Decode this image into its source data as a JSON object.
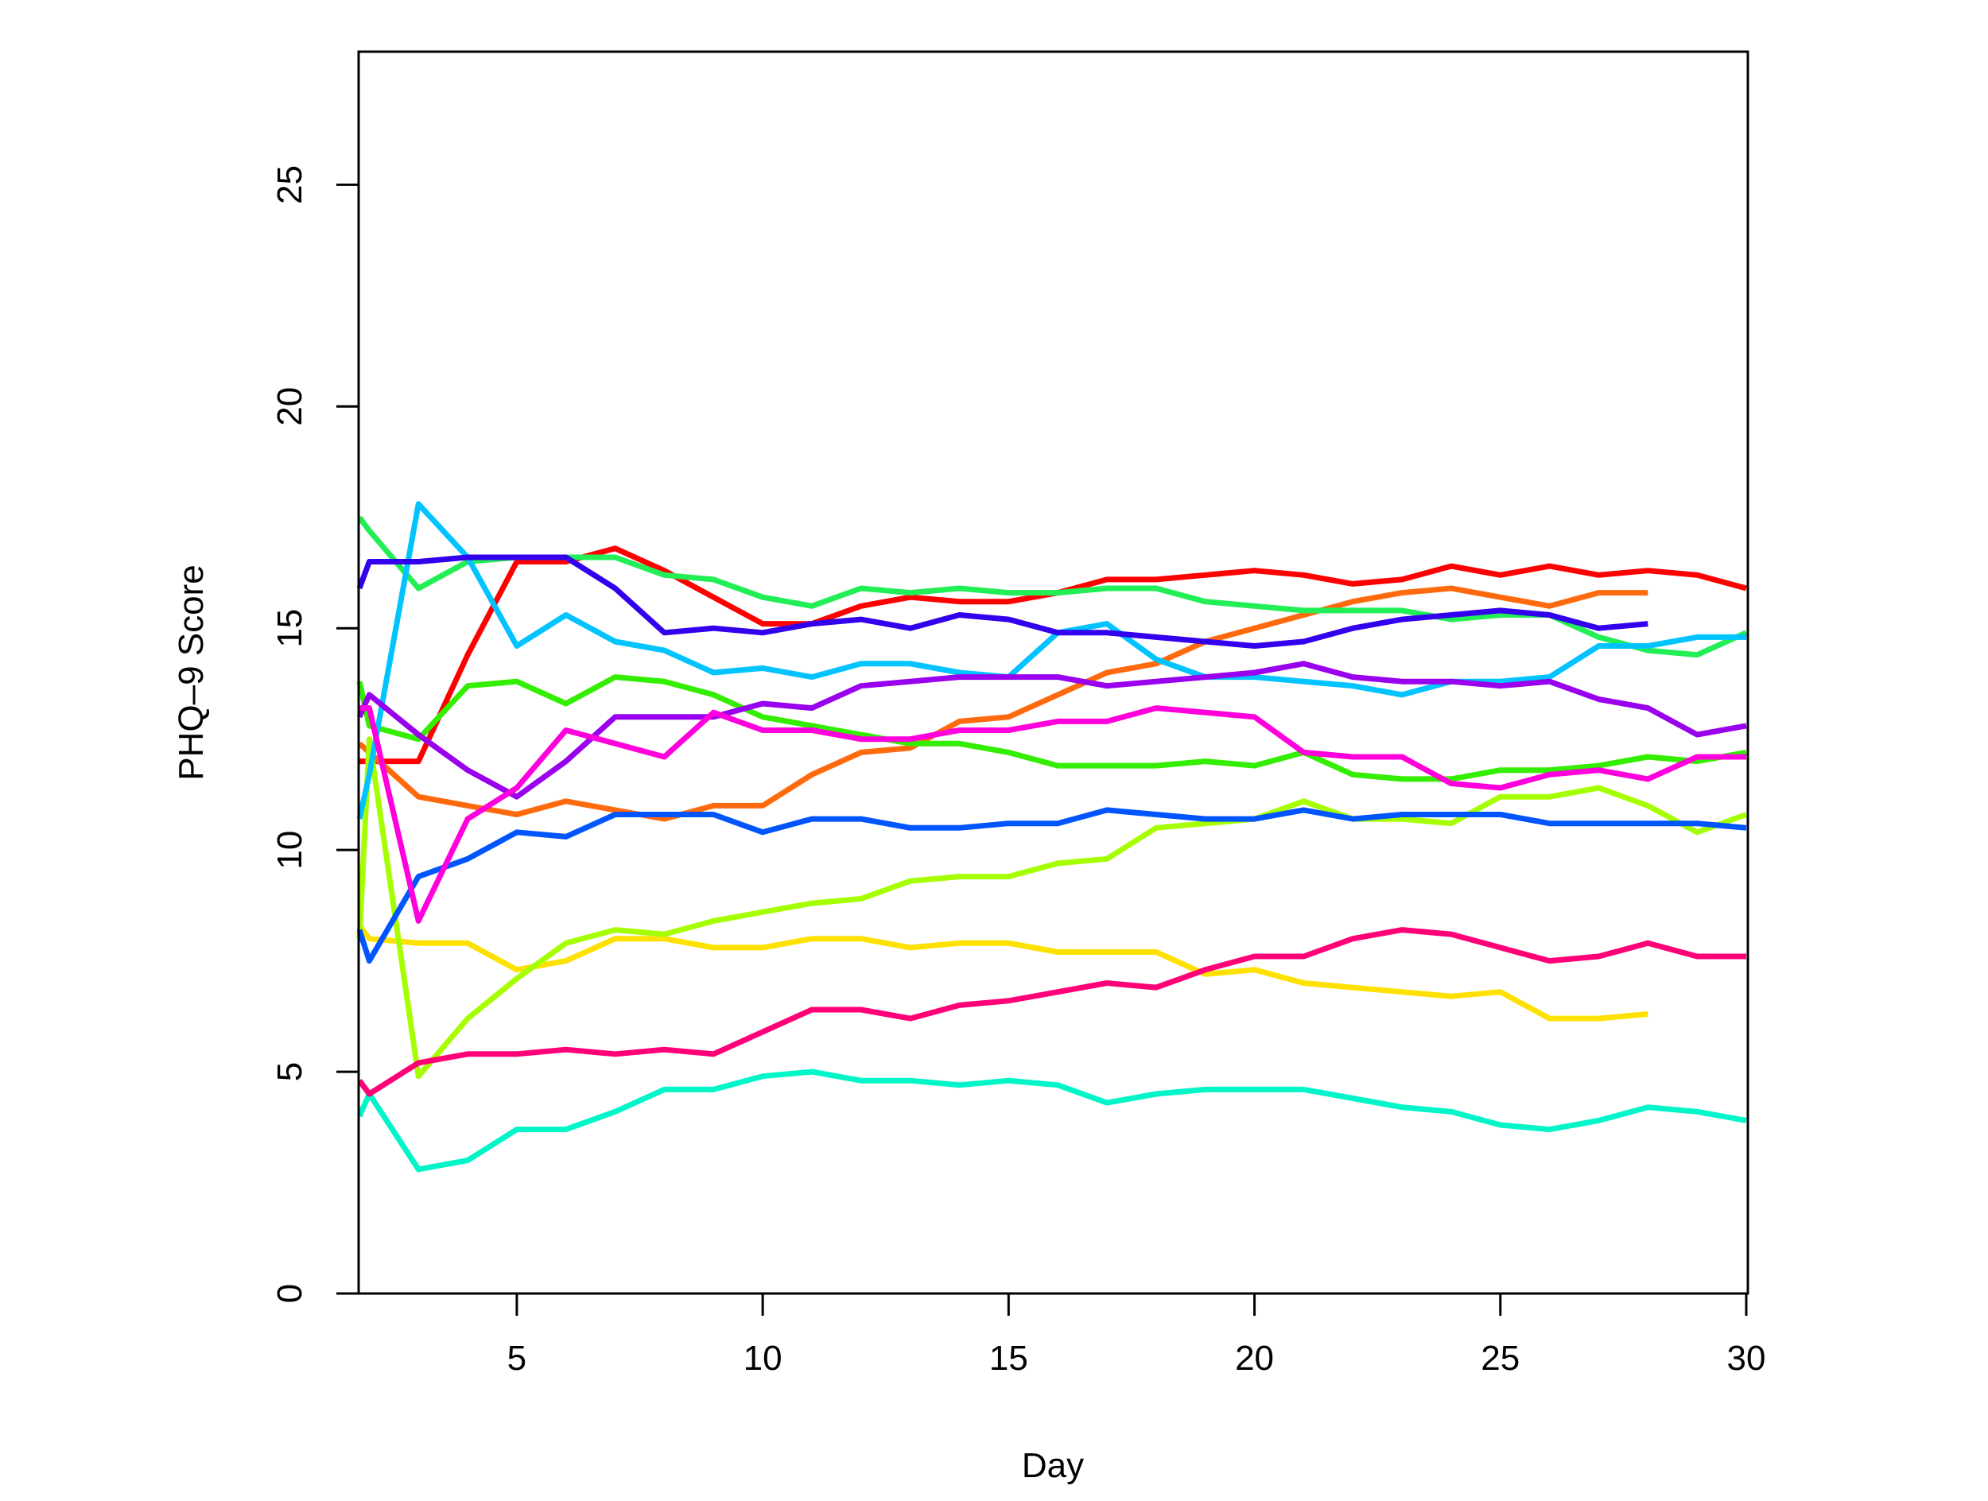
{
  "chart_data": {
    "type": "line",
    "title": "",
    "xlabel": "Day",
    "ylabel": "PHQ–9 Score",
    "xlim": [
      1.8,
      30
    ],
    "ylim": [
      0,
      28
    ],
    "xticks": [
      5,
      10,
      15,
      20,
      25,
      30
    ],
    "yticks": [
      0,
      5,
      10,
      15,
      20,
      25
    ],
    "grid": false,
    "legend": "none",
    "series": [
      {
        "color": "#FF0000",
        "x": [
          1.8,
          2,
          3,
          4,
          5,
          6,
          7,
          8,
          9,
          10,
          11,
          12,
          13,
          14,
          15,
          16,
          17,
          18,
          19,
          20,
          21,
          22,
          23,
          24,
          25,
          26,
          27,
          28,
          29,
          30
        ],
        "y": [
          12.0,
          12.0,
          12.0,
          14.4,
          16.5,
          16.5,
          16.8,
          16.3,
          15.7,
          15.1,
          15.1,
          15.5,
          15.7,
          15.6,
          15.6,
          15.8,
          16.1,
          16.1,
          16.2,
          16.3,
          16.2,
          16.0,
          16.1,
          16.4,
          16.2,
          16.4,
          16.2,
          16.3,
          16.2,
          15.9
        ]
      },
      {
        "color": "#FF6A0E",
        "x": [
          1.8,
          2,
          3,
          4,
          5,
          6,
          7,
          8,
          9,
          10,
          11,
          12,
          13,
          14,
          15,
          16,
          17,
          18,
          19,
          20,
          21,
          22,
          23,
          24,
          25,
          26,
          27,
          28
        ],
        "y": [
          12.4,
          12.2,
          11.2,
          11.0,
          10.8,
          11.1,
          10.9,
          10.7,
          11.0,
          11.0,
          11.7,
          12.2,
          12.3,
          12.9,
          13.0,
          13.5,
          14.0,
          14.2,
          14.7,
          15.0,
          15.3,
          15.6,
          15.8,
          15.9,
          15.7,
          15.5,
          15.8,
          15.8
        ]
      },
      {
        "color": "#FFE100",
        "x": [
          1.8,
          2,
          3,
          4,
          5,
          6,
          7,
          8,
          9,
          10,
          11,
          12,
          13,
          14,
          15,
          16,
          17,
          18,
          19,
          20,
          21,
          22,
          23,
          24,
          25,
          26,
          27,
          28
        ],
        "y": [
          8.3,
          8.0,
          7.9,
          7.9,
          7.3,
          7.5,
          8.0,
          8.0,
          7.8,
          7.8,
          8.0,
          8.0,
          7.8,
          7.9,
          7.9,
          7.7,
          7.7,
          7.7,
          7.2,
          7.3,
          7.0,
          6.9,
          6.8,
          6.7,
          6.8,
          6.2,
          6.2,
          6.3
        ]
      },
      {
        "color": "#A6FF00",
        "x": [
          1.8,
          2,
          3,
          4,
          5,
          6,
          7,
          8,
          9,
          10,
          11,
          12,
          13,
          14,
          15,
          16,
          17,
          18,
          19,
          20,
          21,
          22,
          23,
          24,
          25,
          26,
          27,
          28,
          29,
          30
        ],
        "y": [
          8.0,
          12.5,
          4.9,
          6.2,
          7.1,
          7.9,
          8.2,
          8.1,
          8.4,
          8.6,
          8.8,
          8.9,
          9.3,
          9.4,
          9.4,
          9.7,
          9.8,
          10.5,
          10.6,
          10.7,
          11.1,
          10.7,
          10.7,
          10.6,
          11.2,
          11.2,
          11.4,
          11.0,
          10.4,
          10.8
        ]
      },
      {
        "color": "#33EE00",
        "x": [
          1.8,
          2,
          3,
          4,
          5,
          6,
          7,
          8,
          9,
          10,
          11,
          12,
          13,
          14,
          15,
          16,
          17,
          18,
          19,
          20,
          21,
          22,
          23,
          24,
          25,
          26,
          27,
          28,
          29,
          30
        ],
        "y": [
          13.8,
          12.8,
          12.5,
          13.7,
          13.8,
          13.3,
          13.9,
          13.8,
          13.5,
          13.0,
          12.8,
          12.6,
          12.4,
          12.4,
          12.2,
          11.9,
          11.9,
          11.9,
          12.0,
          11.9,
          12.2,
          11.7,
          11.6,
          11.6,
          11.8,
          11.8,
          11.9,
          12.1,
          12.0,
          12.2
        ]
      },
      {
        "color": "#22EE55",
        "x": [
          1.8,
          2,
          3,
          4,
          5,
          6,
          7,
          8,
          9,
          10,
          11,
          12,
          13,
          14,
          15,
          16,
          17,
          18,
          19,
          20,
          21,
          22,
          23,
          24,
          25,
          26,
          27,
          28,
          29,
          30
        ],
        "y": [
          17.5,
          17.2,
          15.9,
          16.5,
          16.6,
          16.6,
          16.6,
          16.2,
          16.1,
          15.7,
          15.5,
          15.9,
          15.8,
          15.9,
          15.8,
          15.8,
          15.9,
          15.9,
          15.6,
          15.5,
          15.4,
          15.4,
          15.4,
          15.2,
          15.3,
          15.3,
          14.8,
          14.5,
          14.4,
          14.9
        ]
      },
      {
        "color": "#00F5C8",
        "x": [
          1.8,
          2,
          3,
          4,
          5,
          6,
          7,
          8,
          9,
          10,
          11,
          12,
          13,
          14,
          15,
          16,
          17,
          18,
          19,
          20,
          21,
          22,
          23,
          24,
          25,
          26,
          27,
          28,
          29,
          30
        ],
        "y": [
          4.0,
          4.5,
          2.8,
          3.0,
          3.7,
          3.7,
          4.1,
          4.6,
          4.6,
          4.9,
          5.0,
          4.8,
          4.8,
          4.7,
          4.8,
          4.7,
          4.3,
          4.5,
          4.6,
          4.6,
          4.6,
          4.4,
          4.2,
          4.1,
          3.8,
          3.7,
          3.9,
          4.2,
          4.1,
          3.9
        ]
      },
      {
        "color": "#00C3FF",
        "x": [
          1.8,
          2,
          3,
          4,
          5,
          6,
          7,
          8,
          9,
          10,
          11,
          12,
          13,
          14,
          15,
          16,
          17,
          18,
          19,
          20,
          21,
          22,
          23,
          24,
          25,
          26,
          27,
          28,
          29,
          30
        ],
        "y": [
          10.7,
          11.7,
          17.8,
          16.6,
          14.6,
          15.3,
          14.7,
          14.5,
          14.0,
          14.1,
          13.9,
          14.2,
          14.2,
          14.0,
          13.9,
          14.9,
          15.1,
          14.3,
          13.9,
          13.9,
          13.8,
          13.7,
          13.5,
          13.8,
          13.8,
          13.9,
          14.6,
          14.6,
          14.8,
          14.8
        ]
      },
      {
        "color": "#0055FF",
        "x": [
          1.8,
          2,
          3,
          4,
          5,
          6,
          7,
          8,
          9,
          10,
          11,
          12,
          13,
          14,
          15,
          16,
          17,
          18,
          19,
          20,
          21,
          22,
          23,
          24,
          25,
          26,
          27,
          28,
          29,
          30
        ],
        "y": [
          8.2,
          7.5,
          9.4,
          9.8,
          10.4,
          10.3,
          10.8,
          10.8,
          10.8,
          10.4,
          10.7,
          10.7,
          10.5,
          10.5,
          10.6,
          10.6,
          10.9,
          10.8,
          10.7,
          10.7,
          10.9,
          10.7,
          10.8,
          10.8,
          10.8,
          10.6,
          10.6,
          10.6,
          10.6,
          10.5
        ]
      },
      {
        "color": "#3300EE",
        "x": [
          1.8,
          2,
          3,
          4,
          5,
          6,
          7,
          8,
          9,
          10,
          11,
          12,
          13,
          14,
          15,
          16,
          17,
          18,
          19,
          20,
          21,
          22,
          23,
          24,
          25,
          26,
          27,
          28
        ],
        "y": [
          15.9,
          16.5,
          16.5,
          16.6,
          16.6,
          16.6,
          15.9,
          14.9,
          15.0,
          14.9,
          15.1,
          15.2,
          15.0,
          15.3,
          15.2,
          14.9,
          14.9,
          14.8,
          14.7,
          14.6,
          14.7,
          15.0,
          15.2,
          15.3,
          15.4,
          15.3,
          15.0,
          15.1
        ]
      },
      {
        "color": "#9900EE",
        "x": [
          1.8,
          2,
          3,
          4,
          5,
          6,
          7,
          8,
          9,
          10,
          11,
          12,
          13,
          14,
          15,
          16,
          17,
          18,
          19,
          20,
          21,
          22,
          23,
          24,
          25,
          26,
          27,
          28,
          29,
          30
        ],
        "y": [
          13.0,
          13.5,
          12.6,
          11.8,
          11.2,
          12.0,
          13.0,
          13.0,
          13.0,
          13.3,
          13.2,
          13.7,
          13.8,
          13.9,
          13.9,
          13.9,
          13.7,
          13.8,
          13.9,
          14.0,
          14.2,
          13.9,
          13.8,
          13.8,
          13.7,
          13.8,
          13.4,
          13.2,
          12.6,
          12.8
        ]
      },
      {
        "color": "#FF00DD",
        "x": [
          1.8,
          2,
          3,
          4,
          5,
          6,
          7,
          8,
          9,
          10,
          11,
          12,
          13,
          14,
          15,
          16,
          17,
          18,
          19,
          20,
          21,
          22,
          23,
          24,
          25,
          26,
          27,
          28,
          29,
          30
        ],
        "y": [
          13.2,
          13.2,
          8.4,
          10.7,
          11.4,
          12.7,
          12.4,
          12.1,
          13.1,
          12.7,
          12.7,
          12.5,
          12.5,
          12.7,
          12.7,
          12.9,
          12.9,
          13.2,
          13.1,
          13.0,
          12.2,
          12.1,
          12.1,
          11.5,
          11.4,
          11.7,
          11.8,
          11.6,
          12.1,
          12.1
        ]
      },
      {
        "color": "#FF0077",
        "x": [
          1.8,
          2,
          3,
          4,
          5,
          6,
          7,
          8,
          9,
          10,
          11,
          12,
          13,
          14,
          15,
          16,
          17,
          18,
          19,
          20,
          21,
          22,
          23,
          24,
          25,
          26,
          27,
          28,
          29,
          30
        ],
        "y": [
          4.8,
          4.5,
          5.2,
          5.4,
          5.4,
          5.5,
          5.4,
          5.5,
          5.4,
          5.9,
          6.4,
          6.4,
          6.2,
          6.5,
          6.6,
          6.8,
          7.0,
          6.9,
          7.3,
          7.6,
          7.6,
          8.0,
          8.2,
          8.1,
          7.8,
          7.5,
          7.6,
          7.9,
          7.6,
          7.6
        ]
      }
    ]
  }
}
